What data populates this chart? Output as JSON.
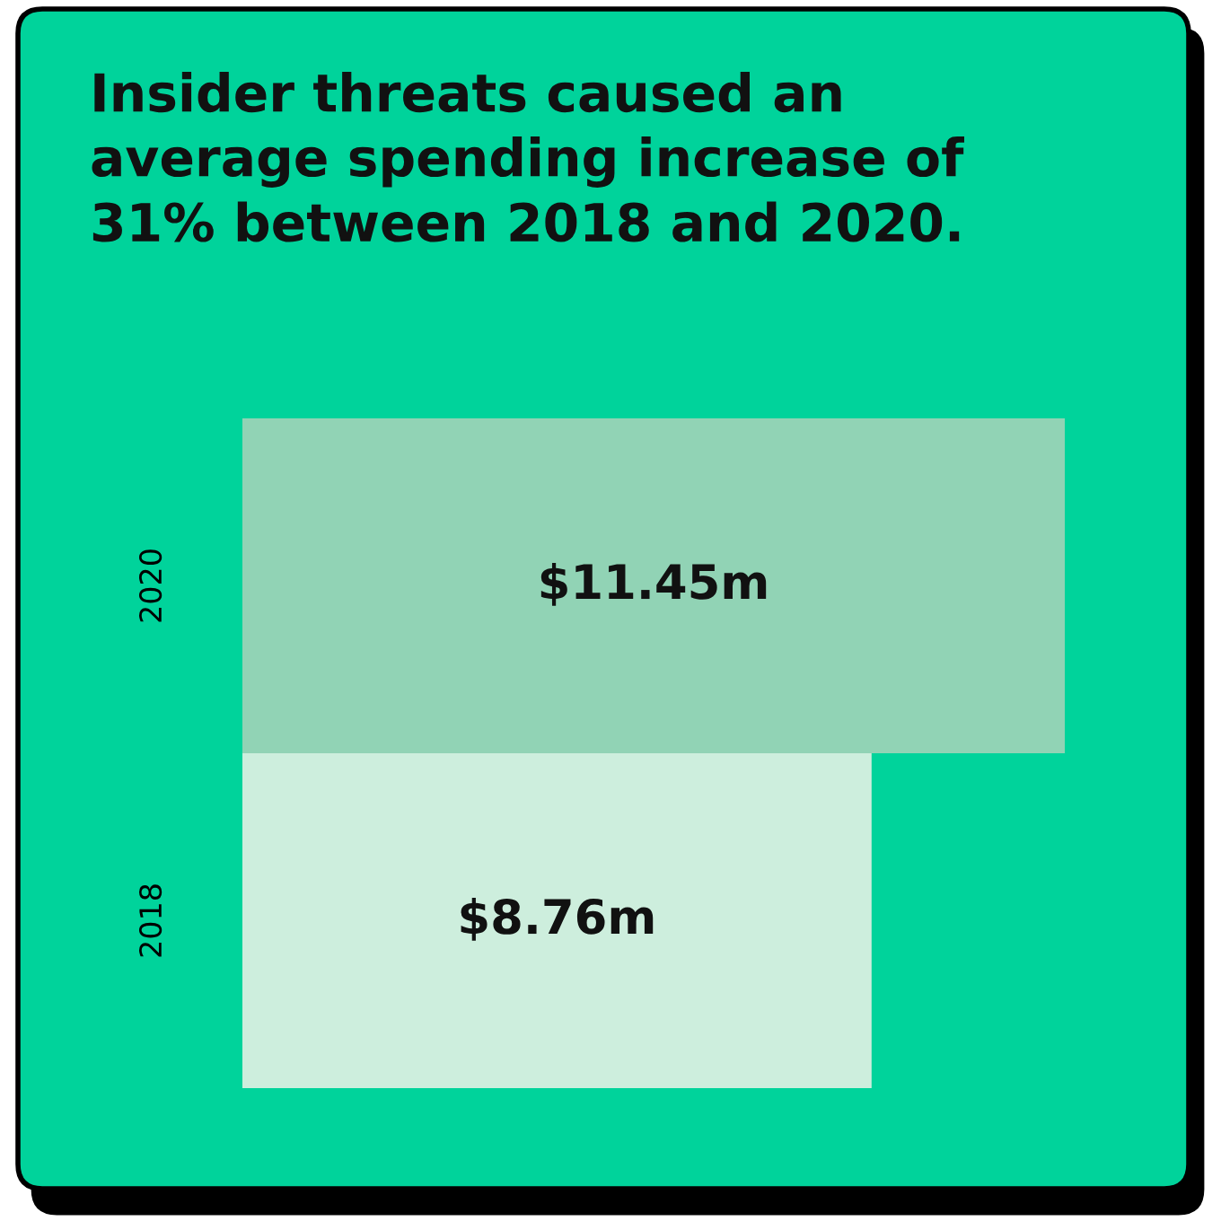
{
  "chart_data": {
    "type": "bar",
    "orientation": "horizontal",
    "title": "Insider threats caused an\naverage spending increase of\n31% between 2018 and 2020.",
    "categories": [
      "2020",
      "2018"
    ],
    "values": [
      11.45,
      8.76
    ],
    "colors": [
      "#91d3b5",
      "#cdeedd"
    ],
    "value_labels": [
      "$11.45m",
      "$8.76m"
    ],
    "tick_labels": "y",
    "grid": false,
    "legend": false
  }
}
